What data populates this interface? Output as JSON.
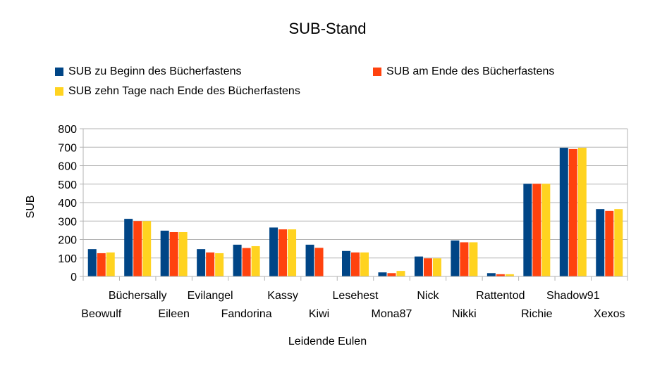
{
  "chart_data": {
    "type": "bar",
    "title": "SUB-Stand",
    "xlabel": "Leidende Eulen",
    "ylabel": "SUB",
    "ylim": [
      0,
      800
    ],
    "yticks": [
      "0",
      "100",
      "200",
      "300",
      "400",
      "500",
      "600",
      "700",
      "800"
    ],
    "grid": true,
    "legend": "top",
    "categories": [
      "Beowulf",
      "Büchersally",
      "Eileen",
      "Evilangel",
      "Fandorina",
      "Kassy",
      "Kiwi",
      "Lesehest",
      "Mona87",
      "Nick",
      "Nikki",
      "Rattentod",
      "Richie",
      "Shadow91",
      "Xexos"
    ],
    "series": [
      {
        "name": "SUB zu Beginn des Bücherfastens",
        "color": "#004586",
        "values": [
          148,
          312,
          248,
          148,
          172,
          265,
          172,
          138,
          22,
          108,
          195,
          18,
          502,
          697,
          365
        ]
      },
      {
        "name": "SUB am Ende des Bücherfastens",
        "color": "#ff420e",
        "values": [
          126,
          300,
          240,
          130,
          154,
          255,
          155,
          130,
          18,
          98,
          185,
          12,
          502,
          690,
          355
        ]
      },
      {
        "name": "SUB zehn Tage nach Ende des Bücherfastens",
        "color": "#ffd320",
        "values": [
          130,
          300,
          240,
          126,
          164,
          255,
          null,
          130,
          30,
          98,
          185,
          12,
          502,
          697,
          365
        ]
      }
    ]
  }
}
